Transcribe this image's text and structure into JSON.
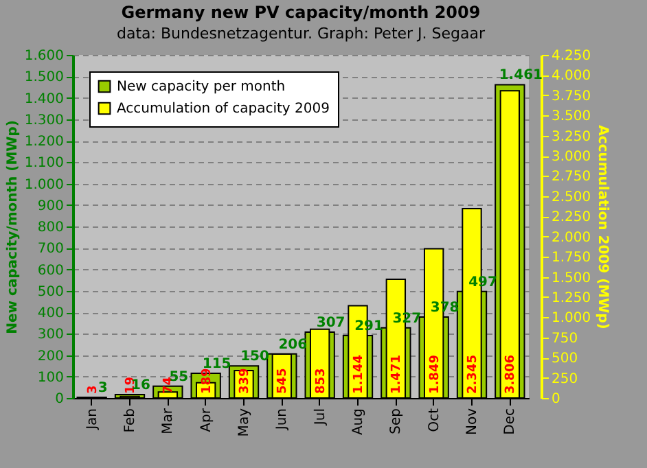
{
  "chart_data": {
    "type": "bar",
    "title": "Germany new PV capacity/month 2009",
    "subtitle": "data: Bundesnetzagentur. Graph: Peter J. Segaar",
    "ylabel": "New capacity/month (MWp)",
    "y2label": "Accumulation 2009 (MWp)",
    "categories": [
      "Jan",
      "Feb",
      "Mar",
      "Apr",
      "May",
      "Jun",
      "Jul",
      "Aug",
      "Sep",
      "Oct",
      "Nov",
      "Dec"
    ],
    "series": [
      {
        "name": "New capacity per month",
        "color": "#99cc00",
        "values": [
          3,
          16,
          55,
          115,
          150,
          206,
          307,
          291,
          327,
          378,
          497,
          1461
        ],
        "value_labels": [
          "3",
          "16",
          "55",
          "115",
          "150",
          "206",
          "307",
          "291",
          "327",
          "378",
          "497",
          "1.461"
        ]
      },
      {
        "name": "Accumulation of capacity 2009",
        "color": "#ffff00",
        "axis": "y2",
        "values": [
          3,
          19,
          74,
          189,
          339,
          545,
          853,
          1144,
          1471,
          1849,
          2345,
          3806
        ],
        "value_labels": [
          "3",
          "19",
          "74",
          "189",
          "339",
          "545",
          "853",
          "1.144",
          "1.471",
          "1.849",
          "2.345",
          "3.806"
        ]
      }
    ],
    "ylim": [
      0,
      1600
    ],
    "yticks": [
      0,
      100,
      200,
      300,
      400,
      500,
      600,
      700,
      800,
      900,
      {
        "value": 1000,
        "label": "1.000"
      },
      {
        "value": 1100,
        "label": "1.100"
      },
      {
        "value": 1200,
        "label": "1.200"
      },
      {
        "value": 1300,
        "label": "1.300"
      },
      {
        "value": 1400,
        "label": "1.400"
      },
      {
        "value": 1500,
        "label": "1.500"
      },
      {
        "value": 1600,
        "label": "1.600"
      }
    ],
    "y2lim": [
      0,
      4250
    ],
    "y2ticks": [
      0,
      250,
      500,
      750,
      {
        "value": 1000,
        "label": "1.000"
      },
      {
        "value": 1250,
        "label": "1.250"
      },
      {
        "value": 1500,
        "label": "1.500"
      },
      {
        "value": 1750,
        "label": "1.750"
      },
      {
        "value": 2000,
        "label": "2.000"
      },
      {
        "value": 2250,
        "label": "2.250"
      },
      {
        "value": 2500,
        "label": "2.500"
      },
      {
        "value": 2750,
        "label": "2.750"
      },
      {
        "value": 3000,
        "label": "3.000"
      },
      {
        "value": 3250,
        "label": "3.250"
      },
      {
        "value": 3500,
        "label": "3.500"
      },
      {
        "value": 3750,
        "label": "3.750"
      },
      {
        "value": 4000,
        "label": "4.000"
      },
      {
        "value": 4250,
        "label": "4.250"
      }
    ],
    "grid": "y",
    "legend": "top left"
  }
}
